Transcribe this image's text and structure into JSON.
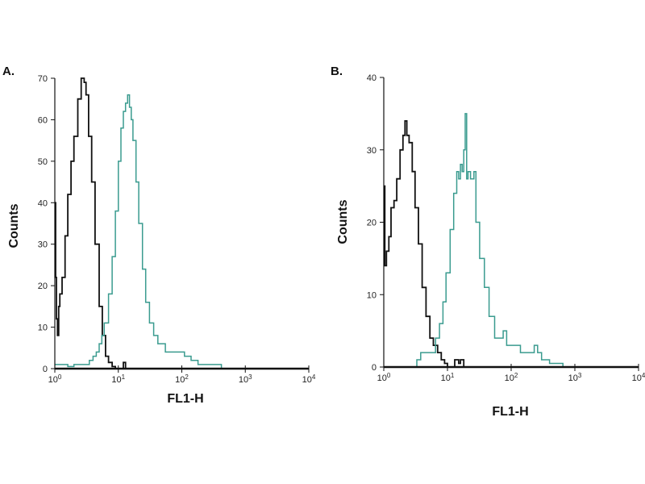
{
  "chart_data": [
    {
      "type": "line",
      "panel_label": "A.",
      "xlabel": "FL1-H",
      "ylabel": "Counts",
      "x_scale": "log",
      "xlim": [
        1,
        10000
      ],
      "ylim": [
        0,
        70
      ],
      "x_ticks": [
        {
          "base": "10",
          "exp": "0"
        },
        {
          "base": "10",
          "exp": "1"
        },
        {
          "base": "10",
          "exp": "2"
        },
        {
          "base": "10",
          "exp": "3"
        },
        {
          "base": "10",
          "exp": "4"
        }
      ],
      "y_ticks": [
        "0",
        "10",
        "20",
        "30",
        "40",
        "50",
        "60",
        "70"
      ],
      "grid": false,
      "series": [
        {
          "color": "#111111",
          "x": [
            1,
            1.03,
            1.06,
            1.1,
            1.15,
            1.2,
            1.3,
            1.45,
            1.6,
            1.8,
            2.0,
            2.3,
            2.6,
            2.9,
            3.1,
            3.4,
            3.8,
            4.3,
            5,
            5.6,
            6.3,
            7,
            8,
            9,
            11,
            12,
            13,
            15,
            20,
            100,
            1000,
            10000
          ],
          "y": [
            40,
            22,
            12,
            8,
            15,
            18,
            22,
            32,
            42,
            50,
            56,
            65,
            70,
            69,
            66,
            56,
            45,
            30,
            15,
            8,
            3,
            1.5,
            0.5,
            0,
            0,
            1.5,
            0,
            0,
            0,
            0,
            0,
            0
          ]
        },
        {
          "color": "#3a9b8f",
          "x": [
            1,
            1.3,
            1.6,
            2,
            2.5,
            3,
            3.5,
            4,
            4.5,
            5,
            5.5,
            6,
            7,
            8,
            9,
            10,
            11,
            12,
            13,
            14,
            15,
            16,
            17,
            19,
            21,
            24,
            27,
            31,
            36,
            42,
            55,
            70,
            90,
            110,
            140,
            180,
            220,
            280,
            350,
            420,
            1000,
            10000
          ],
          "y": [
            1,
            1,
            0.5,
            1,
            1,
            1,
            2,
            3,
            4,
            6,
            8,
            11,
            18,
            27,
            38,
            50,
            58,
            62,
            64,
            66,
            63,
            60,
            55,
            45,
            35,
            24,
            16,
            11,
            8,
            6,
            4,
            4,
            4,
            3,
            2,
            1,
            1,
            1,
            1,
            0,
            0,
            0
          ]
        }
      ]
    },
    {
      "type": "line",
      "panel_label": "B.",
      "xlabel": "FL1-H",
      "ylabel": "Counts",
      "x_scale": "log",
      "xlim": [
        1,
        10000
      ],
      "ylim": [
        0,
        40
      ],
      "x_ticks": [
        {
          "base": "10",
          "exp": "0"
        },
        {
          "base": "10",
          "exp": "1"
        },
        {
          "base": "10",
          "exp": "2"
        },
        {
          "base": "10",
          "exp": "3"
        },
        {
          "base": "10",
          "exp": "4"
        }
      ],
      "y_ticks": [
        "0",
        "10",
        "20",
        "30",
        "40"
      ],
      "grid": false,
      "series": [
        {
          "color": "#111111",
          "x": [
            1,
            1.04,
            1.1,
            1.2,
            1.3,
            1.45,
            1.6,
            1.8,
            2.0,
            2.15,
            2.3,
            2.5,
            2.8,
            3.1,
            3.5,
            4,
            4.6,
            5.3,
            6,
            7,
            8,
            9,
            10,
            12,
            13,
            14,
            15,
            16,
            18,
            20,
            100,
            1000,
            10000
          ],
          "y": [
            25,
            14,
            16,
            18,
            22,
            23,
            26,
            30,
            32,
            34,
            32,
            31,
            27,
            22,
            17,
            11,
            7,
            4,
            3,
            2,
            1,
            0.5,
            0,
            0,
            1,
            1,
            0.5,
            1,
            0,
            0,
            0,
            0,
            0
          ]
        },
        {
          "color": "#3a9b8f",
          "x": [
            1,
            3,
            3.3,
            3.8,
            4.5,
            5.5,
            6.5,
            7.5,
            8.5,
            9.5,
            11,
            12.5,
            14,
            15,
            16,
            17,
            18,
            19,
            20,
            21,
            23,
            26,
            28,
            32,
            38,
            45,
            55,
            65,
            75,
            85,
            110,
            140,
            180,
            230,
            260,
            300,
            400,
            500,
            650,
            1000,
            10000
          ],
          "y": [
            0,
            0,
            1,
            2,
            2,
            2,
            4,
            6,
            9,
            13,
            19,
            24,
            27,
            26,
            28,
            27,
            30,
            35,
            26,
            27,
            26,
            27,
            20,
            15,
            11,
            7,
            4,
            4,
            5,
            3,
            3,
            2,
            2,
            3,
            2,
            1,
            0.5,
            0.5,
            0,
            0,
            0
          ]
        }
      ]
    }
  ]
}
